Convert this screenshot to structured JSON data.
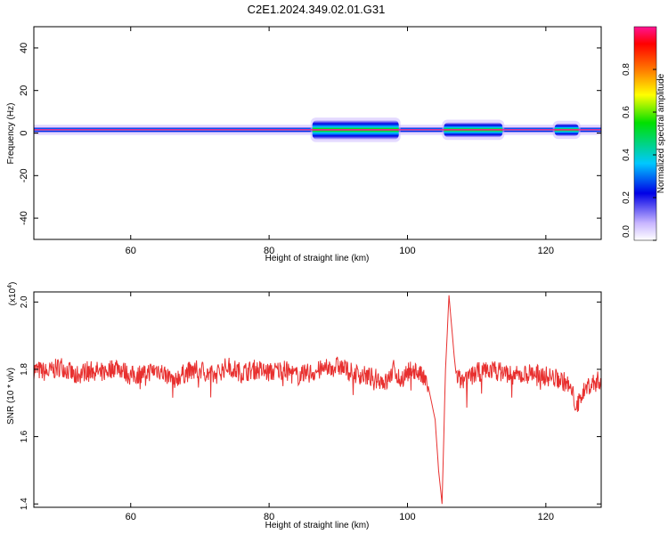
{
  "title": "C2E1.2024.349.02.01.G31",
  "chart_data": [
    {
      "type": "heatmap",
      "xlabel": "Height of straight line (km)",
      "ylabel": "Frequency (Hz)",
      "xlim": [
        46,
        128
      ],
      "ylim": [
        -50,
        50
      ],
      "xticks": [
        60,
        80,
        100,
        120
      ],
      "yticks": [
        40,
        20,
        0,
        -20,
        -40
      ],
      "colorbar": {
        "label": "Normalized spectral amplitude",
        "range": [
          0,
          1
        ],
        "ticks": [
          "0.0",
          "0.2",
          "0.4",
          "0.6",
          "0.8"
        ],
        "ticks_values": [
          0.0,
          0.2,
          0.4,
          0.6,
          0.8
        ]
      },
      "band": {
        "center_hz": 1.5,
        "halfwidth_hz": 1.2,
        "widened_segments": [
          {
            "x": [
              86,
              99
            ],
            "halfwidth_hz": 4.5
          },
          {
            "x": [
              105,
              114
            ],
            "halfwidth_hz": 3.5
          },
          {
            "x": [
              121,
              125
            ],
            "halfwidth_hz": 3.0
          }
        ]
      },
      "colors": {
        "ridge": "#ff1493",
        "core": "#00e000",
        "edge": "#0000e6",
        "halo": "#c9b6ff"
      }
    },
    {
      "type": "line",
      "xlabel": "Height of straight line (km)",
      "ylabel": "SNR (10 * v/v)",
      "yscale_label": "(x10",
      "yscale_exp": "4",
      "xlim": [
        46,
        128
      ],
      "ylim": [
        1.39,
        2.03
      ],
      "xticks": [
        60,
        80,
        100,
        120
      ],
      "yticks": [
        2.0,
        1.8,
        1.6,
        1.4
      ],
      "yticklabels": [
        "2.0",
        "1.8",
        "1.6",
        "1.4"
      ],
      "line_color": "#e8302f",
      "series": [
        {
          "x": [
            46,
            48,
            50,
            52,
            54,
            56,
            58,
            60,
            62,
            64,
            66,
            68,
            70,
            72,
            74,
            76,
            78,
            80,
            82,
            84,
            86,
            88,
            90,
            92,
            94,
            96,
            97,
            98,
            99,
            100,
            101,
            102,
            103,
            104,
            104.5,
            105,
            105.5,
            106,
            107,
            108,
            110,
            112,
            114,
            116,
            118,
            120,
            122,
            123,
            124,
            124.5,
            125,
            126,
            127,
            128
          ],
          "values": [
            1.8,
            1.79,
            1.81,
            1.78,
            1.8,
            1.79,
            1.81,
            1.78,
            1.79,
            1.8,
            1.77,
            1.79,
            1.8,
            1.78,
            1.81,
            1.79,
            1.8,
            1.79,
            1.8,
            1.78,
            1.79,
            1.8,
            1.81,
            1.79,
            1.78,
            1.77,
            1.76,
            1.8,
            1.77,
            1.79,
            1.8,
            1.78,
            1.75,
            1.65,
            1.5,
            1.4,
            1.8,
            2.02,
            1.78,
            1.76,
            1.79,
            1.8,
            1.79,
            1.78,
            1.79,
            1.78,
            1.77,
            1.76,
            1.72,
            1.68,
            1.72,
            1.75,
            1.76,
            1.77
          ]
        }
      ]
    }
  ]
}
